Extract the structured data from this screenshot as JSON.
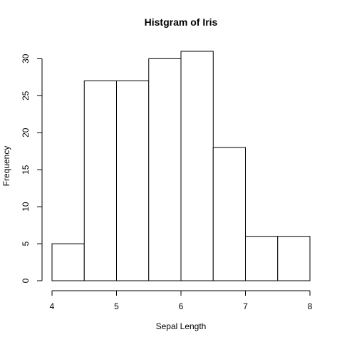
{
  "chart_data": {
    "type": "bar",
    "subtype": "histogram",
    "title": "Histgram of Iris",
    "xlabel": "Sepal Length",
    "ylabel": "Frequency",
    "bins": [
      {
        "start": 4.0,
        "end": 4.5,
        "count": 5
      },
      {
        "start": 4.5,
        "end": 5.0,
        "count": 27
      },
      {
        "start": 5.0,
        "end": 5.5,
        "count": 27
      },
      {
        "start": 5.5,
        "end": 6.0,
        "count": 30
      },
      {
        "start": 6.0,
        "end": 6.5,
        "count": 31
      },
      {
        "start": 6.5,
        "end": 7.0,
        "count": 18
      },
      {
        "start": 7.0,
        "end": 7.5,
        "count": 6
      },
      {
        "start": 7.5,
        "end": 8.0,
        "count": 6
      }
    ],
    "xlim": [
      4,
      8
    ],
    "ylim": [
      0,
      31
    ],
    "x_ticks": [
      4,
      5,
      6,
      7,
      8
    ],
    "y_ticks": [
      0,
      5,
      10,
      15,
      20,
      25,
      30
    ],
    "x_tick_labels": [
      "4",
      "5",
      "6",
      "7",
      "8"
    ],
    "y_tick_labels": [
      "0",
      "5",
      "10",
      "15",
      "20",
      "25",
      "30"
    ],
    "grid": false,
    "legend": "none",
    "bar_fill": "#ffffff",
    "bar_stroke": "#000000"
  }
}
